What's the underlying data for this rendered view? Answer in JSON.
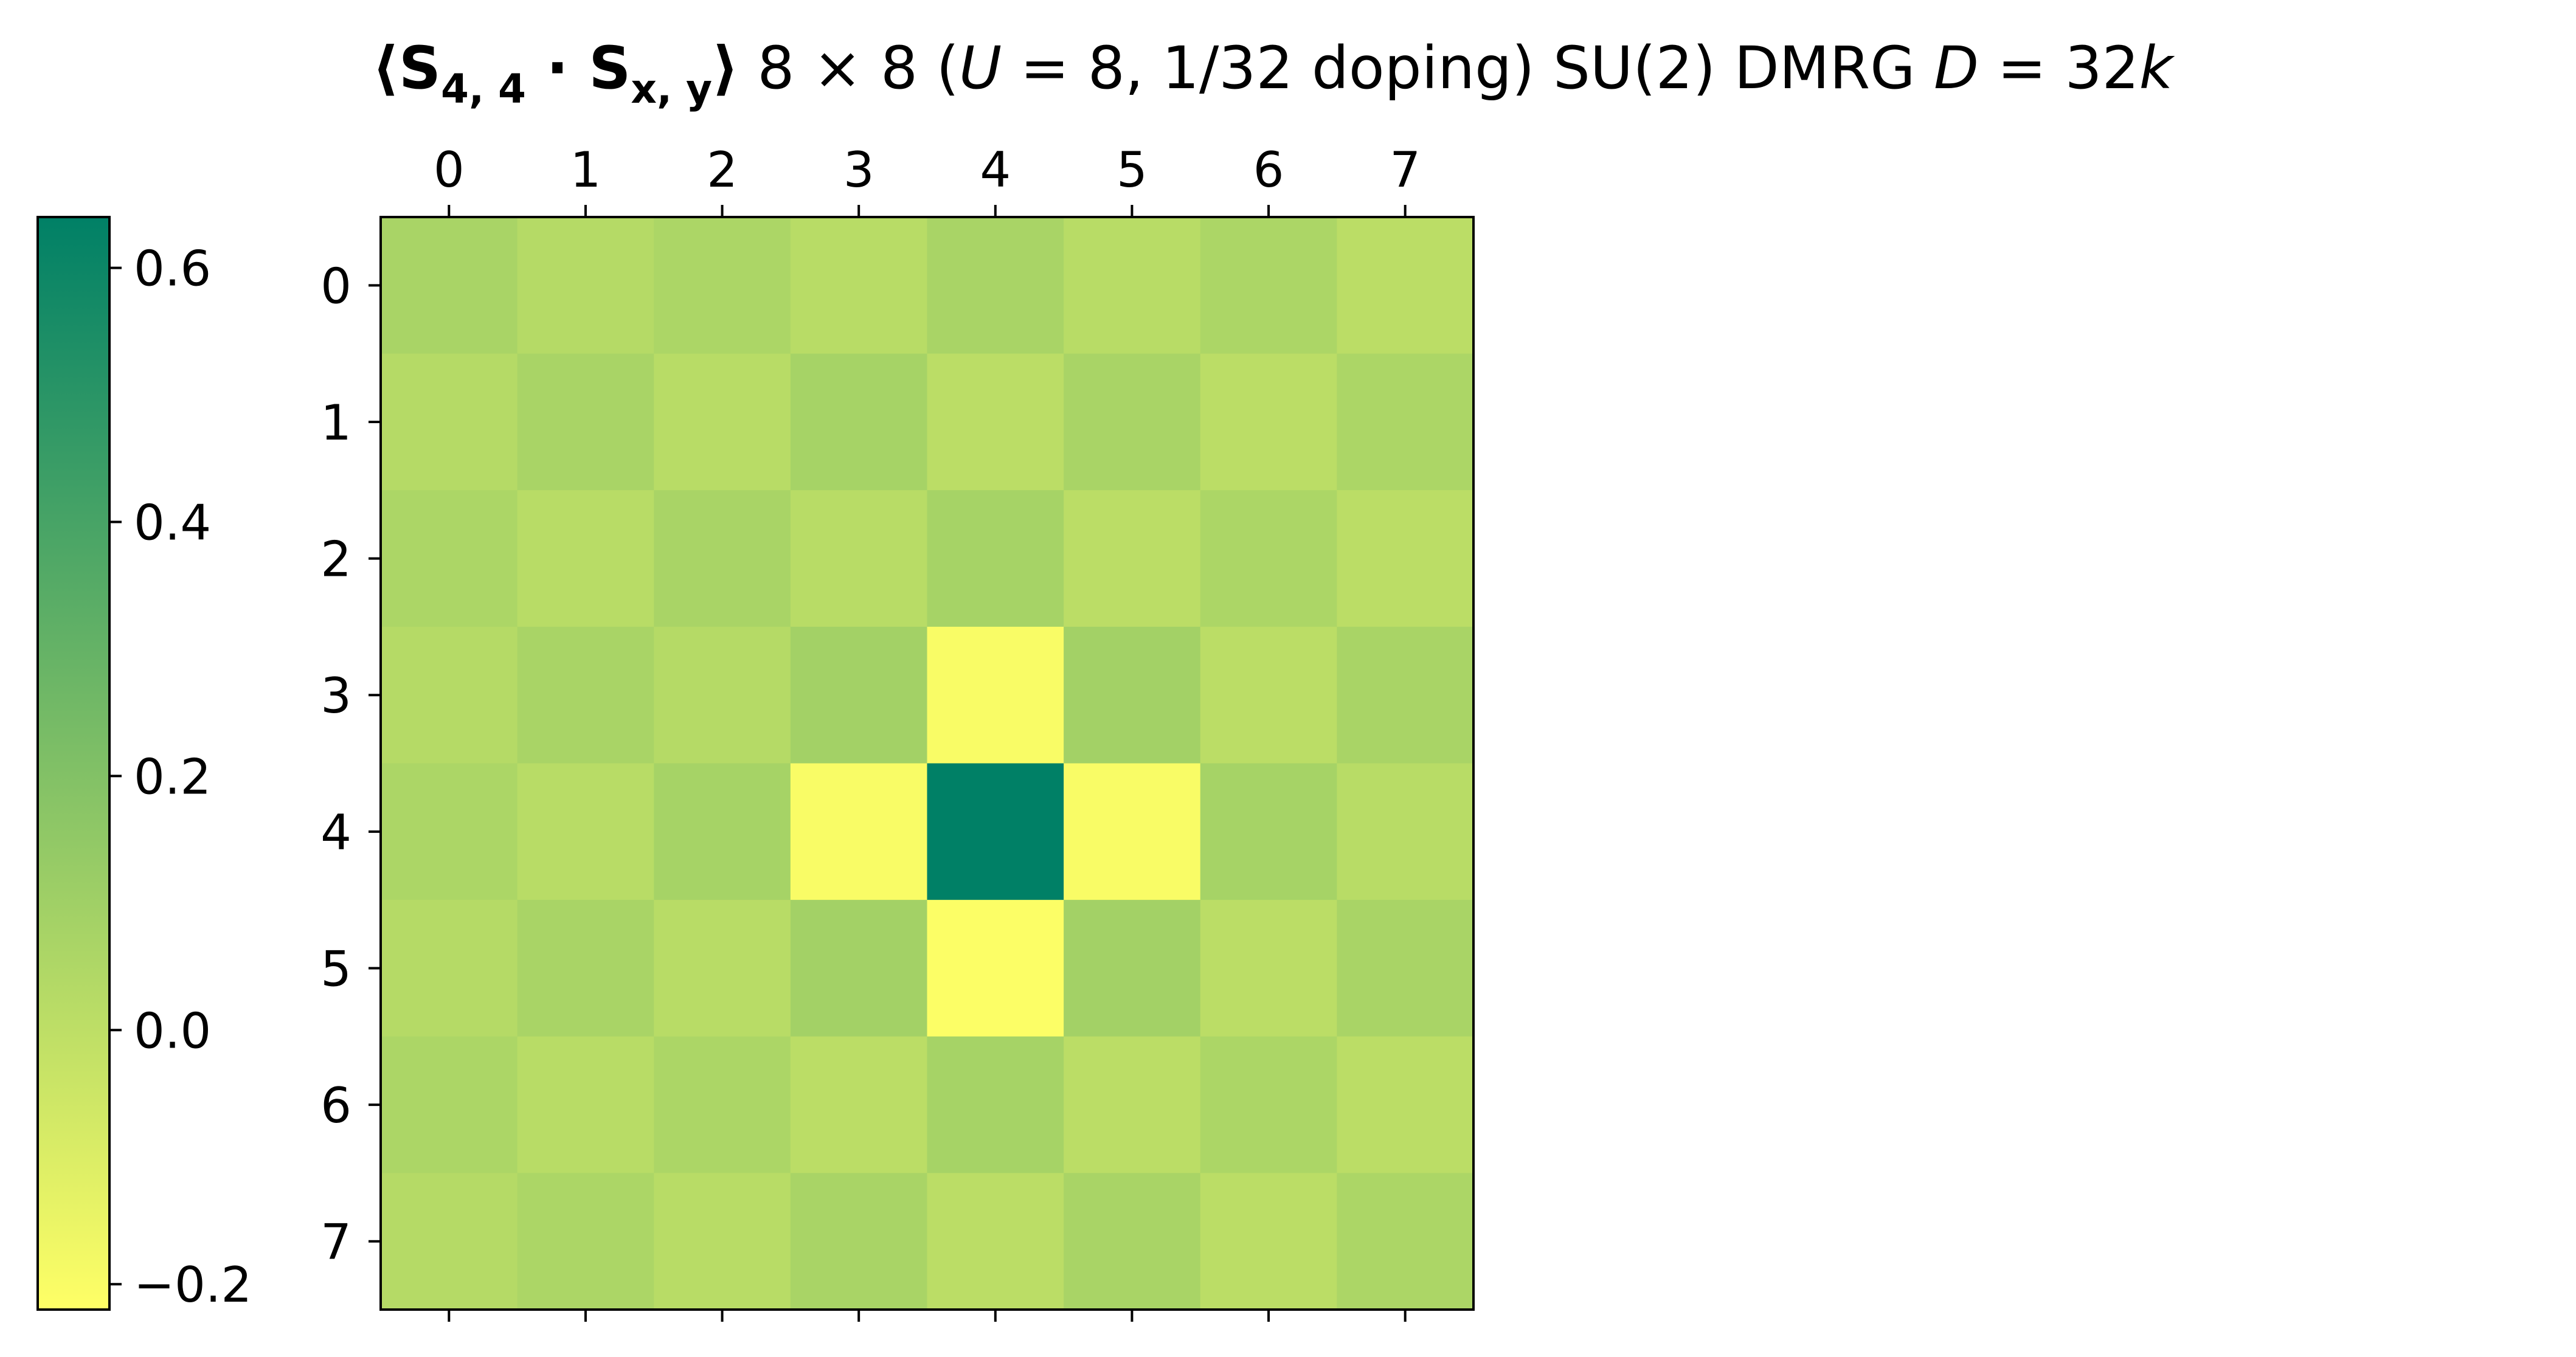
{
  "chart_data": {
    "type": "heatmap",
    "title": {
      "bold_prefix": "⟨S",
      "bold_sub1": "4, 4",
      "bold_dot": " · S",
      "bold_sub2": "x, y",
      "bold_suffix": "⟩",
      "rest_1": " 8 × 8 (",
      "rest_U": "U",
      "rest_2": " = 8, 1/32 doping) SU(2) DMRG ",
      "rest_D": "D",
      "rest_3": " = 32",
      "rest_k": "k"
    },
    "x_ticks": [
      "0",
      "1",
      "2",
      "3",
      "4",
      "5",
      "6",
      "7"
    ],
    "y_ticks": [
      "0",
      "1",
      "2",
      "3",
      "4",
      "5",
      "6",
      "7"
    ],
    "x_axis_position": "top",
    "colormap": "summer_r",
    "colormap_stops": [
      "#ffff66",
      "#008066"
    ],
    "vmin": -0.22,
    "vmax": 0.64,
    "colorbar": {
      "position": "left",
      "ticks": [
        -0.2,
        0.0,
        0.2,
        0.4,
        0.6
      ],
      "tick_labels": [
        "−0.2",
        "0.0",
        "0.2",
        "0.4",
        "0.6"
      ]
    },
    "values": [
      [
        0.07,
        0.03,
        0.06,
        0.02,
        0.07,
        0.02,
        0.06,
        0.01
      ],
      [
        0.03,
        0.07,
        0.02,
        0.08,
        0.01,
        0.07,
        0.01,
        0.06
      ],
      [
        0.06,
        0.02,
        0.07,
        0.02,
        0.08,
        0.01,
        0.06,
        0.01
      ],
      [
        0.03,
        0.07,
        0.03,
        0.09,
        -0.2,
        0.09,
        0.01,
        0.07
      ],
      [
        0.06,
        0.02,
        0.08,
        -0.2,
        0.64,
        -0.2,
        0.08,
        0.02
      ],
      [
        0.03,
        0.07,
        0.02,
        0.09,
        -0.21,
        0.09,
        0.01,
        0.07
      ],
      [
        0.06,
        0.02,
        0.06,
        0.01,
        0.08,
        0.01,
        0.06,
        0.01
      ],
      [
        0.03,
        0.06,
        0.02,
        0.07,
        0.01,
        0.07,
        0.01,
        0.06
      ]
    ]
  }
}
